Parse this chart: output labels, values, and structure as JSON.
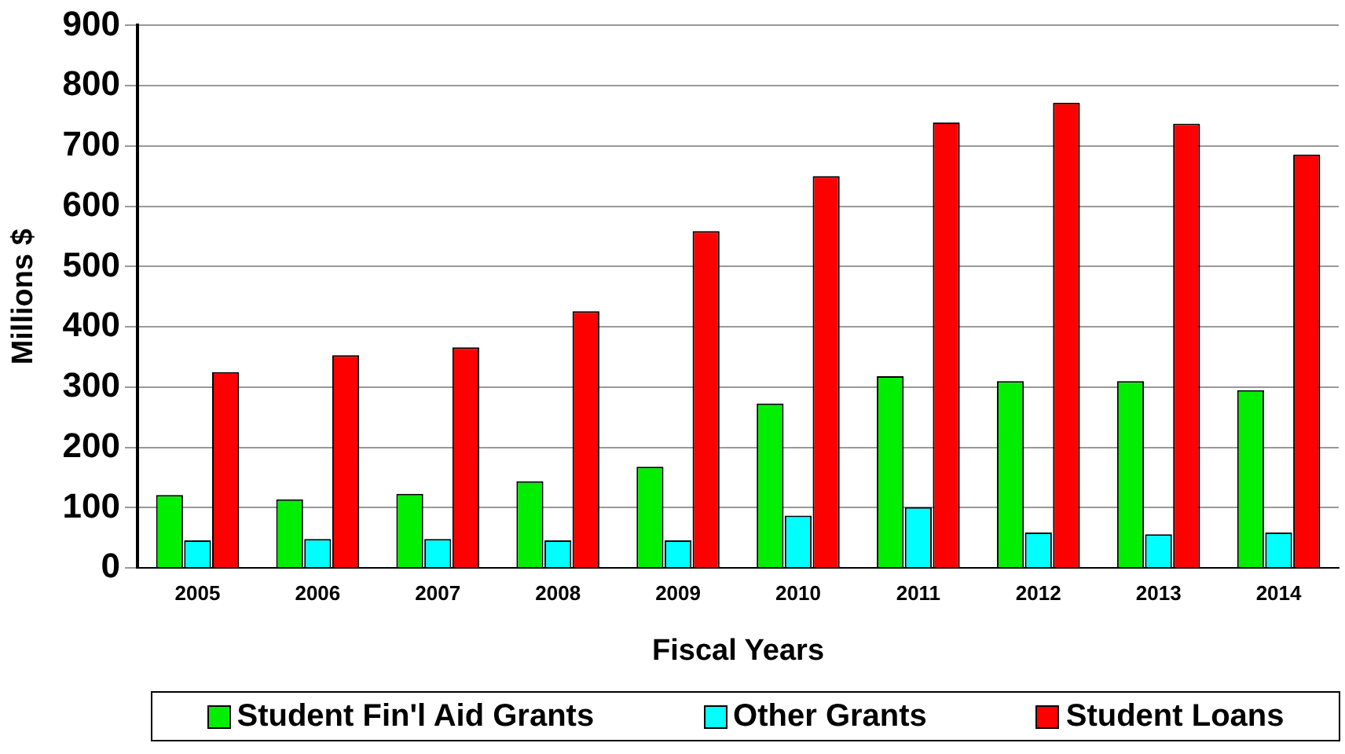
{
  "chart_data": {
    "type": "bar",
    "xlabel": "Fiscal Years",
    "ylabel": "Millions $",
    "categories": [
      "2005",
      "2006",
      "2007",
      "2008",
      "2009",
      "2010",
      "2011",
      "2012",
      "2013",
      "2014"
    ],
    "series": [
      {
        "name": "Student Fin'l Aid Grants",
        "color": "#00ee00",
        "values": [
          121,
          114,
          123,
          144,
          168,
          273,
          318,
          310,
          310,
          295
        ]
      },
      {
        "name": "Other Grants",
        "color": "#00ffff",
        "values": [
          46,
          48,
          48,
          46,
          46,
          87,
          101,
          59,
          56,
          59
        ]
      },
      {
        "name": "Student Loans",
        "color": "#ff0000",
        "values": [
          325,
          353,
          366,
          426,
          559,
          650,
          739,
          772,
          737,
          686
        ]
      }
    ],
    "ylim": [
      0,
      900
    ],
    "yticks": [
      0,
      100,
      200,
      300,
      400,
      500,
      600,
      700,
      800,
      900
    ],
    "grid": "y",
    "legend": "bottom"
  }
}
